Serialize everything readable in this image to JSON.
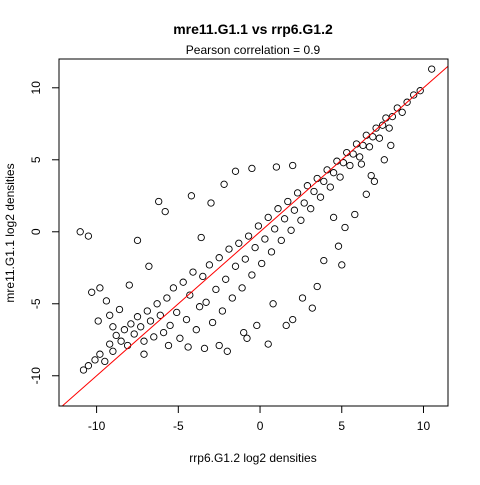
{
  "chart_data": {
    "type": "scatter",
    "title": "mre11.G1.1 vs rrp6.G1.2",
    "subtitle": "Pearson correlation =  0.9",
    "xlabel": "rrp6.G1.2 log2 densities",
    "ylabel": "mre11.G1.1 log2 densities",
    "xlim": [
      -12.3,
      11.5
    ],
    "ylim": [
      -12.1,
      12.0
    ],
    "x_ticks": [
      -10,
      -5,
      0,
      5,
      10
    ],
    "x_tick_labels": [
      "-10",
      "-5",
      "0",
      "5",
      "10"
    ],
    "y_ticks": [
      -10,
      -5,
      0,
      5,
      10
    ],
    "y_tick_labels": [
      "-10",
      "-5",
      "0",
      "5",
      "10"
    ],
    "grid": false,
    "marker": "open-circle",
    "point_color": "#000000",
    "reference_line": {
      "type": "identity",
      "slope": 1,
      "intercept": 0,
      "color": "#ff0000"
    },
    "series": [
      {
        "points": [
          [
            -10.8,
            -9.6
          ],
          [
            -10.5,
            -9.3
          ],
          [
            -10.1,
            -8.9
          ],
          [
            -9.8,
            -8.5
          ],
          [
            -9.5,
            -9.0
          ],
          [
            -9.2,
            -7.8
          ],
          [
            -9.0,
            -8.3
          ],
          [
            -8.8,
            -7.2
          ],
          [
            -8.5,
            -7.6
          ],
          [
            -8.3,
            -6.8
          ],
          [
            -8.1,
            -7.9
          ],
          [
            -7.9,
            -6.4
          ],
          [
            -7.7,
            -7.1
          ],
          [
            -7.5,
            -5.9
          ],
          [
            -7.3,
            -6.6
          ],
          [
            -7.1,
            -7.6
          ],
          [
            -6.9,
            -5.5
          ],
          [
            -6.7,
            -6.2
          ],
          [
            -6.5,
            -7.3
          ],
          [
            -6.3,
            -5.0
          ],
          [
            -6.1,
            -5.8
          ],
          [
            -5.9,
            -7.0
          ],
          [
            -5.7,
            -4.6
          ],
          [
            -5.5,
            -6.5
          ],
          [
            -5.3,
            -3.9
          ],
          [
            -5.1,
            -5.6
          ],
          [
            -4.9,
            -7.4
          ],
          [
            -4.7,
            -3.5
          ],
          [
            -4.5,
            -6.1
          ],
          [
            -4.3,
            -4.4
          ],
          [
            -4.1,
            -2.8
          ],
          [
            -3.9,
            -6.8
          ],
          [
            -3.7,
            -5.2
          ],
          [
            -3.5,
            -3.1
          ],
          [
            -3.3,
            -4.9
          ],
          [
            -3.1,
            -2.3
          ],
          [
            -2.9,
            -6.3
          ],
          [
            -2.7,
            -4.0
          ],
          [
            -2.5,
            -1.8
          ],
          [
            -2.3,
            -5.5
          ],
          [
            -2.1,
            -3.3
          ],
          [
            -1.9,
            -1.2
          ],
          [
            -1.7,
            -4.6
          ],
          [
            -1.5,
            -2.4
          ],
          [
            -1.3,
            -0.8
          ],
          [
            -1.1,
            -3.9
          ],
          [
            -0.9,
            -1.9
          ],
          [
            -0.7,
            -0.3
          ],
          [
            -0.5,
            -3.0
          ],
          [
            -0.3,
            -1.1
          ],
          [
            -0.1,
            0.4
          ],
          [
            0.1,
            -2.2
          ],
          [
            0.3,
            -0.5
          ],
          [
            0.5,
            1.0
          ],
          [
            0.7,
            -1.4
          ],
          [
            0.9,
            0.2
          ],
          [
            1.1,
            1.6
          ],
          [
            1.3,
            -0.6
          ],
          [
            1.5,
            0.9
          ],
          [
            1.7,
            2.1
          ],
          [
            1.9,
            0.1
          ],
          [
            2.1,
            1.5
          ],
          [
            2.3,
            2.7
          ],
          [
            2.5,
            0.8
          ],
          [
            2.7,
            2.0
          ],
          [
            2.9,
            3.2
          ],
          [
            3.1,
            1.6
          ],
          [
            3.3,
            2.8
          ],
          [
            3.5,
            3.7
          ],
          [
            3.7,
            2.4
          ],
          [
            3.9,
            3.5
          ],
          [
            4.1,
            4.3
          ],
          [
            4.3,
            3.1
          ],
          [
            4.5,
            4.1
          ],
          [
            4.7,
            4.9
          ],
          [
            4.9,
            3.8
          ],
          [
            5.1,
            4.8
          ],
          [
            5.3,
            5.5
          ],
          [
            5.5,
            4.6
          ],
          [
            5.7,
            5.4
          ],
          [
            5.9,
            6.1
          ],
          [
            6.1,
            5.2
          ],
          [
            6.3,
            6.0
          ],
          [
            6.5,
            6.7
          ],
          [
            6.7,
            5.9
          ],
          [
            6.9,
            6.6
          ],
          [
            7.1,
            7.2
          ],
          [
            7.3,
            6.5
          ],
          [
            7.5,
            7.4
          ],
          [
            7.7,
            7.9
          ],
          [
            7.9,
            7.2
          ],
          [
            8.1,
            8.0
          ],
          [
            8.4,
            8.6
          ],
          [
            8.7,
            8.3
          ],
          [
            9.0,
            9.0
          ],
          [
            9.4,
            9.5
          ],
          [
            9.8,
            9.8
          ],
          [
            10.5,
            11.3
          ],
          [
            -11.0,
            0.0
          ],
          [
            -10.5,
            -0.3
          ],
          [
            -7.5,
            -0.6
          ],
          [
            -6.2,
            2.1
          ],
          [
            -5.8,
            1.4
          ],
          [
            -4.2,
            2.5
          ],
          [
            -3.0,
            2.0
          ],
          [
            -2.2,
            3.3
          ],
          [
            -1.5,
            4.2
          ],
          [
            -0.5,
            4.4
          ],
          [
            1.0,
            4.5
          ],
          [
            2.0,
            4.6
          ],
          [
            -10.3,
            -4.2
          ],
          [
            -9.8,
            -3.9
          ],
          [
            -9.4,
            -4.8
          ],
          [
            -9.9,
            -6.2
          ],
          [
            -9.2,
            -5.8
          ],
          [
            -3.4,
            -8.1
          ],
          [
            -2.0,
            -8.3
          ],
          [
            -0.8,
            -7.4
          ],
          [
            0.5,
            -7.8
          ],
          [
            1.6,
            -6.5
          ],
          [
            2.0,
            -6.1
          ],
          [
            2.6,
            -4.6
          ],
          [
            3.2,
            -5.3
          ],
          [
            3.5,
            -3.8
          ],
          [
            3.9,
            -2.0
          ],
          [
            4.8,
            -1.0
          ],
          [
            5.2,
            0.3
          ],
          [
            5.8,
            1.2
          ],
          [
            6.5,
            2.6
          ],
          [
            7.0,
            3.5
          ],
          [
            7.6,
            5.0
          ],
          [
            5.0,
            -2.3
          ],
          [
            6.2,
            4.7
          ],
          [
            4.5,
            1.0
          ],
          [
            8.0,
            6.0
          ],
          [
            6.8,
            3.9
          ],
          [
            -3.6,
            -0.4
          ],
          [
            -6.8,
            -2.4
          ],
          [
            -8.0,
            -3.7
          ],
          [
            -7.1,
            -8.5
          ],
          [
            -5.6,
            -7.9
          ],
          [
            -4.4,
            -8.0
          ],
          [
            -2.5,
            -7.9
          ],
          [
            -1.0,
            -7.0
          ],
          [
            -0.2,
            -6.5
          ],
          [
            0.8,
            -5.0
          ],
          [
            -9.0,
            -6.6
          ],
          [
            -8.6,
            -5.4
          ]
        ]
      }
    ]
  }
}
